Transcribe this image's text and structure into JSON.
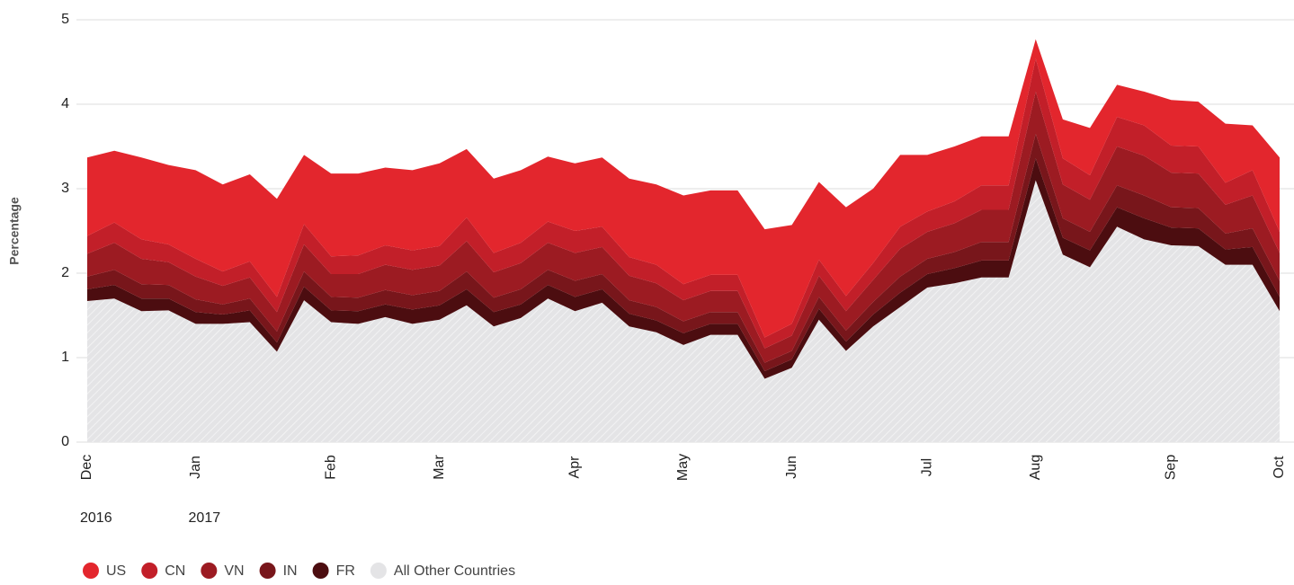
{
  "chart_data": {
    "type": "stacked_area",
    "y_label": "Percentage",
    "categories": [
      "Dec",
      null,
      null,
      null,
      "Jan",
      null,
      null,
      null,
      null,
      "Feb",
      null,
      null,
      null,
      "Mar",
      null,
      null,
      null,
      null,
      "Apr",
      null,
      null,
      null,
      "May",
      null,
      null,
      null,
      "Jun",
      null,
      null,
      null,
      null,
      "Jul",
      null,
      null,
      null,
      "Aug",
      null,
      null,
      null,
      null,
      "Sep",
      null,
      null,
      null,
      "Oct"
    ],
    "years": [
      "2016",
      null,
      null,
      null,
      "2017",
      null,
      null,
      null,
      null,
      null,
      null,
      null,
      null,
      null,
      null,
      null,
      null,
      null,
      null,
      null,
      null,
      null,
      null,
      null,
      null,
      null,
      null,
      null,
      null,
      null,
      null,
      null,
      null,
      null,
      null,
      null,
      null,
      null,
      null,
      null,
      null,
      null,
      null,
      null,
      null
    ],
    "ylim": [
      0,
      5
    ],
    "yticks": [
      0,
      1,
      2,
      3,
      4,
      5
    ],
    "grid": true,
    "legend": "bottom",
    "series": [
      {
        "name": "US",
        "color": "#e3262d",
        "values": [
          0.93,
          0.85,
          0.97,
          0.94,
          1.05,
          1.03,
          1.03,
          1.16,
          0.82,
          0.98,
          0.97,
          0.92,
          0.95,
          0.98,
          0.81,
          0.88,
          0.86,
          0.77,
          0.8,
          0.82,
          0.93,
          0.95,
          1.05,
          1.0,
          1.0,
          1.28,
          1.17,
          0.92,
          1.05,
          0.88,
          0.85,
          0.67,
          0.65,
          0.58,
          0.58,
          0.23,
          0.46,
          0.56,
          0.38,
          0.4,
          0.54,
          0.53,
          0.7,
          0.53,
          0.88
        ]
      },
      {
        "name": "CN",
        "color": "#c21f29",
        "values": [
          0.21,
          0.24,
          0.23,
          0.21,
          0.21,
          0.17,
          0.19,
          0.18,
          0.24,
          0.21,
          0.22,
          0.23,
          0.23,
          0.23,
          0.28,
          0.23,
          0.24,
          0.25,
          0.26,
          0.24,
          0.22,
          0.22,
          0.19,
          0.19,
          0.19,
          0.13,
          0.14,
          0.19,
          0.18,
          0.2,
          0.26,
          0.24,
          0.26,
          0.29,
          0.29,
          0.39,
          0.31,
          0.29,
          0.35,
          0.36,
          0.32,
          0.32,
          0.26,
          0.3,
          0.25
        ]
      },
      {
        "name": "VN",
        "color": "#9c1b22",
        "values": [
          0.27,
          0.32,
          0.3,
          0.27,
          0.27,
          0.22,
          0.25,
          0.23,
          0.32,
          0.27,
          0.28,
          0.3,
          0.3,
          0.3,
          0.36,
          0.3,
          0.31,
          0.32,
          0.33,
          0.32,
          0.29,
          0.28,
          0.25,
          0.25,
          0.25,
          0.17,
          0.18,
          0.25,
          0.23,
          0.26,
          0.33,
          0.32,
          0.34,
          0.38,
          0.38,
          0.5,
          0.4,
          0.38,
          0.46,
          0.47,
          0.41,
          0.41,
          0.34,
          0.39,
          0.33
        ]
      },
      {
        "name": "IN",
        "color": "#78161b",
        "values": [
          0.15,
          0.18,
          0.17,
          0.16,
          0.15,
          0.12,
          0.14,
          0.13,
          0.18,
          0.16,
          0.16,
          0.17,
          0.17,
          0.17,
          0.21,
          0.17,
          0.18,
          0.18,
          0.19,
          0.18,
          0.16,
          0.16,
          0.14,
          0.14,
          0.14,
          0.1,
          0.1,
          0.14,
          0.13,
          0.15,
          0.19,
          0.18,
          0.19,
          0.22,
          0.22,
          0.29,
          0.23,
          0.22,
          0.26,
          0.27,
          0.24,
          0.24,
          0.19,
          0.22,
          0.19
        ]
      },
      {
        "name": "FR",
        "color": "#4c0d10",
        "values": [
          0.14,
          0.16,
          0.15,
          0.14,
          0.14,
          0.11,
          0.14,
          0.11,
          0.16,
          0.14,
          0.15,
          0.15,
          0.17,
          0.17,
          0.19,
          0.17,
          0.16,
          0.16,
          0.17,
          0.16,
          0.15,
          0.14,
          0.14,
          0.13,
          0.13,
          0.09,
          0.1,
          0.13,
          0.11,
          0.14,
          0.17,
          0.16,
          0.18,
          0.2,
          0.2,
          0.26,
          0.2,
          0.2,
          0.23,
          0.25,
          0.21,
          0.21,
          0.18,
          0.21,
          0.17
        ]
      },
      {
        "name": "All Other Countries",
        "color": "#e4e4e6",
        "values": [
          1.67,
          1.7,
          1.55,
          1.56,
          1.4,
          1.4,
          1.42,
          1.07,
          1.68,
          1.42,
          1.4,
          1.48,
          1.4,
          1.45,
          1.62,
          1.37,
          1.47,
          1.7,
          1.55,
          1.65,
          1.37,
          1.3,
          1.15,
          1.27,
          1.27,
          0.75,
          0.88,
          1.45,
          1.08,
          1.37,
          1.6,
          1.83,
          1.88,
          1.95,
          1.95,
          3.1,
          2.22,
          2.07,
          2.55,
          2.4,
          2.33,
          2.32,
          2.1,
          2.1,
          1.55
        ]
      }
    ]
  }
}
